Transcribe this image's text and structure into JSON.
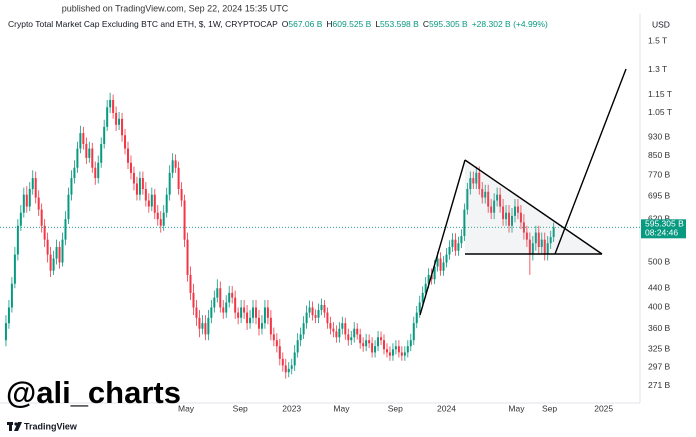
{
  "header": {
    "published": "published on TradingView.com, Sep 22, 2024 15:35 UTC",
    "symbol": "Crypto Total Market Cap Excluding BTC and ETH, $, 1W, CRYPTOCAP",
    "ohlc": [
      [
        "O",
        "567.06 B"
      ],
      [
        "H",
        "609.525 B"
      ],
      [
        "L",
        "553.598 B"
      ],
      [
        "C",
        "595.305 B"
      ]
    ],
    "change": "+28.302 B (+4.99%)"
  },
  "chart_data": {
    "type": "candlestick",
    "currency": "USD",
    "log_scale": true,
    "grid": false,
    "up_color": "#089981",
    "down_color": "#f23645",
    "ylim": [
      249,
      1690
    ],
    "yticks": [
      {
        "value": 1500,
        "label": "1.5 T"
      },
      {
        "value": 1300,
        "label": "1.3 T"
      },
      {
        "value": 1150,
        "label": "1.15 T"
      },
      {
        "value": 1050,
        "label": "1.05 T"
      },
      {
        "value": 930,
        "label": "930 B"
      },
      {
        "value": 850,
        "label": "850 B"
      },
      {
        "value": 770,
        "label": "770 B"
      },
      {
        "value": 695,
        "label": "695 B"
      },
      {
        "value": 620,
        "label": "620 B"
      },
      {
        "value": 500,
        "label": "500 B"
      },
      {
        "value": 440,
        "label": "440 B"
      },
      {
        "value": 400,
        "label": "400 B"
      },
      {
        "value": 360,
        "label": "360 B"
      },
      {
        "value": 325,
        "label": "325 B"
      },
      {
        "value": 297,
        "label": "297 B"
      },
      {
        "value": 271,
        "label": "271 B"
      }
    ],
    "xlim": [
      -2,
      213
    ],
    "xticks": [
      {
        "value": 60.5,
        "label": "May"
      },
      {
        "value": 78.7,
        "label": "Sep"
      },
      {
        "value": 96,
        "label": "2023"
      },
      {
        "value": 112.7,
        "label": "May"
      },
      {
        "value": 130.8,
        "label": "Sep"
      },
      {
        "value": 148,
        "label": "2024"
      },
      {
        "value": 171.5,
        "label": "May"
      },
      {
        "value": 182.6,
        "label": "Sep"
      },
      {
        "value": 200.8,
        "label": "2025"
      }
    ],
    "last_price_label": "595.305 B",
    "countdown": "08:24:46",
    "open": [
      340,
      370,
      400,
      450,
      520,
      600,
      640,
      700,
      660,
      720,
      760,
      690,
      650,
      600,
      560,
      520,
      480,
      510,
      540,
      500,
      560,
      620,
      700,
      760,
      800,
      880,
      950,
      900,
      840,
      880,
      800,
      760,
      820,
      900,
      980,
      1080,
      1120,
      1050,
      990,
      1020,
      940,
      880,
      820,
      780,
      740,
      700,
      760,
      720,
      680,
      660,
      700,
      640,
      620,
      600,
      640,
      700,
      780,
      830,
      800,
      720,
      680,
      560,
      470,
      430,
      400,
      380,
      360,
      370,
      350,
      380,
      400,
      420,
      440,
      400,
      390,
      410,
      430,
      420,
      390,
      380,
      400,
      390,
      370,
      380,
      400,
      380,
      360,
      370,
      400,
      380,
      350,
      340,
      330,
      310,
      300,
      290,
      295,
      300,
      320,
      340,
      350,
      370,
      390,
      400,
      385,
      380,
      395,
      405,
      390,
      370,
      360,
      355,
      345,
      360,
      370,
      350,
      340,
      345,
      360,
      350,
      335,
      330,
      340,
      335,
      320,
      330,
      345,
      340,
      325,
      320,
      315,
      325,
      330,
      320,
      315,
      320,
      330,
      340,
      370,
      390,
      410,
      430,
      450,
      470,
      460,
      490,
      510,
      480,
      500,
      520,
      540,
      560,
      530,
      550,
      570,
      650,
      720,
      760,
      740,
      780,
      720,
      690,
      710,
      660,
      640,
      680,
      700,
      660,
      620,
      640,
      600,
      630,
      660,
      640,
      610,
      580,
      560,
      520,
      550,
      580,
      540,
      560,
      520,
      550,
      567.06
    ],
    "high": [
      385,
      415,
      465,
      540,
      620,
      665,
      725,
      730,
      745,
      790,
      785,
      715,
      670,
      620,
      580,
      540,
      530,
      560,
      555,
      580,
      645,
      725,
      790,
      830,
      910,
      985,
      980,
      930,
      910,
      905,
      825,
      850,
      930,
      1015,
      1120,
      1160,
      1150,
      1085,
      1055,
      1050,
      970,
      910,
      850,
      805,
      765,
      785,
      785,
      745,
      705,
      725,
      720,
      665,
      645,
      665,
      725,
      810,
      860,
      855,
      825,
      745,
      700,
      580,
      490,
      450,
      415,
      395,
      385,
      385,
      395,
      415,
      435,
      460,
      455,
      415,
      425,
      445,
      445,
      435,
      400,
      415,
      415,
      405,
      395,
      415,
      415,
      395,
      385,
      415,
      415,
      395,
      362,
      352,
      342,
      320,
      310,
      305,
      310,
      332,
      352,
      362,
      383,
      404,
      414,
      412,
      396,
      408,
      418,
      415,
      400,
      382,
      372,
      366,
      372,
      382,
      380,
      360,
      356,
      372,
      370,
      360,
      345,
      351,
      350,
      345,
      340,
      356,
      355,
      350,
      335,
      330,
      335,
      340,
      340,
      330,
      330,
      340,
      351,
      382,
      403,
      424,
      444,
      465,
      486,
      485,
      506,
      527,
      526,
      516,
      537,
      558,
      578,
      578,
      568,
      589,
      670,
      742,
      785,
      785,
      805,
      805,
      745,
      735,
      735,
      685,
      705,
      725,
      725,
      685,
      665,
      665,
      655,
      685,
      685,
      665,
      635,
      600,
      580,
      570,
      600,
      600,
      580,
      580,
      570,
      585,
      609.525
    ],
    "low": [
      330,
      360,
      390,
      440,
      505,
      585,
      625,
      640,
      645,
      700,
      670,
      630,
      580,
      540,
      500,
      465,
      470,
      495,
      485,
      490,
      545,
      605,
      680,
      740,
      780,
      860,
      875,
      815,
      820,
      780,
      735,
      740,
      800,
      880,
      960,
      1050,
      1020,
      960,
      965,
      910,
      855,
      795,
      755,
      715,
      680,
      680,
      700,
      660,
      640,
      645,
      620,
      600,
      580,
      585,
      625,
      680,
      760,
      780,
      700,
      660,
      540,
      455,
      415,
      385,
      365,
      345,
      350,
      340,
      340,
      370,
      390,
      410,
      390,
      378,
      380,
      400,
      408,
      378,
      368,
      370,
      378,
      358,
      360,
      370,
      368,
      348,
      350,
      360,
      368,
      340,
      330,
      320,
      300,
      291,
      281,
      283,
      287,
      292,
      312,
      330,
      342,
      360,
      380,
      375,
      370,
      370,
      385,
      380,
      360,
      350,
      345,
      336,
      336,
      350,
      341,
      331,
      332,
      336,
      341,
      326,
      321,
      322,
      327,
      312,
      312,
      322,
      332,
      317,
      312,
      307,
      307,
      317,
      312,
      307,
      307,
      312,
      322,
      332,
      361,
      380,
      400,
      420,
      440,
      448,
      449,
      478,
      468,
      468,
      488,
      507,
      527,
      517,
      517,
      537,
      556,
      634,
      700,
      720,
      720,
      700,
      670,
      670,
      640,
      620,
      620,
      660,
      640,
      600,
      600,
      580,
      580,
      610,
      620,
      590,
      560,
      540,
      470,
      505,
      530,
      520,
      520,
      505,
      505,
      535,
      553.598
    ],
    "close": [
      370,
      400,
      450,
      520,
      600,
      640,
      700,
      660,
      720,
      760,
      690,
      650,
      600,
      560,
      520,
      480,
      510,
      540,
      500,
      560,
      620,
      700,
      760,
      800,
      880,
      950,
      900,
      840,
      880,
      800,
      760,
      820,
      900,
      980,
      1080,
      1120,
      1050,
      990,
      1020,
      940,
      880,
      820,
      780,
      740,
      700,
      760,
      720,
      680,
      660,
      700,
      640,
      620,
      600,
      640,
      700,
      780,
      830,
      800,
      720,
      680,
      560,
      470,
      430,
      400,
      380,
      360,
      370,
      350,
      380,
      400,
      420,
      440,
      400,
      390,
      410,
      430,
      420,
      390,
      380,
      400,
      390,
      370,
      380,
      400,
      380,
      360,
      370,
      400,
      380,
      350,
      340,
      330,
      310,
      300,
      290,
      295,
      300,
      320,
      340,
      350,
      370,
      390,
      400,
      385,
      380,
      395,
      405,
      390,
      370,
      360,
      355,
      345,
      360,
      370,
      350,
      340,
      345,
      360,
      350,
      335,
      330,
      340,
      335,
      320,
      330,
      345,
      340,
      325,
      320,
      315,
      325,
      330,
      320,
      315,
      320,
      330,
      340,
      370,
      390,
      410,
      430,
      450,
      470,
      460,
      490,
      510,
      480,
      500,
      520,
      540,
      560,
      530,
      550,
      570,
      650,
      720,
      760,
      740,
      780,
      720,
      690,
      710,
      660,
      640,
      680,
      700,
      660,
      620,
      640,
      600,
      630,
      660,
      640,
      610,
      580,
      560,
      520,
      550,
      580,
      540,
      560,
      520,
      550,
      567.06,
      595.305
    ]
  },
  "watermark": "@ali_charts",
  "footer": "TradingView"
}
